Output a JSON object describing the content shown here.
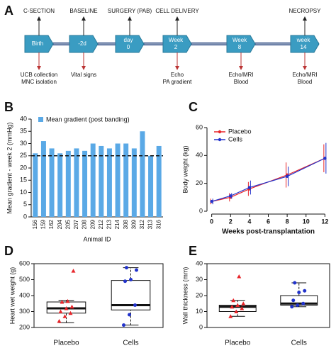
{
  "timeline": {
    "panel": "A",
    "events": [
      {
        "top": "C-SECTION",
        "box": [
          "Birth"
        ],
        "bottom": [
          "UCB collection",
          "MNC isolation"
        ]
      },
      {
        "top": "BASELINE",
        "box": [
          "-2d"
        ],
        "bottom": [
          "Vital signs"
        ]
      },
      {
        "top": "SURGERY (PAB)",
        "box": [
          "day",
          "0"
        ]
      },
      {
        "top": "CELL DELIVERY",
        "box": [
          "Week",
          "2"
        ],
        "bottom": [
          "Echo",
          "PA gradient"
        ]
      },
      {
        "box": [
          "Week",
          "8"
        ],
        "bottom": [
          "Echo/MRI",
          "Blood"
        ]
      },
      {
        "top": "NECROPSY",
        "box": [
          "week",
          "14"
        ],
        "bottom": [
          "Echo/MRI",
          "Blood"
        ]
      }
    ]
  },
  "chart_data": [
    {
      "type": "bar",
      "panel": "B",
      "y_label": "Mean gradient - week 2 (mmHg)",
      "x_label": "Animal ID",
      "legend": "Mean gradient (post banding)",
      "color": "#5aa9e6",
      "categories": [
        "156",
        "159",
        "162",
        "204",
        "205",
        "207",
        "208",
        "209",
        "212",
        "213",
        "214",
        "308",
        "309",
        "312",
        "313",
        "316"
      ],
      "values": [
        26,
        31,
        28,
        26,
        27,
        28,
        27,
        30,
        29,
        28,
        30,
        30,
        28,
        35,
        25,
        29
      ],
      "reference_line": 25,
      "ylim": [
        0,
        40
      ],
      "yticks": [
        0,
        5,
        10,
        15,
        20,
        25,
        30,
        35,
        40
      ]
    },
    {
      "type": "line",
      "panel": "C",
      "y_label": "Body weight (kg)",
      "x_label": "Weeks post-transplantation",
      "x": [
        0,
        2,
        4,
        8,
        12
      ],
      "xlim": [
        -0.5,
        12.5
      ],
      "xticks": [
        0,
        2,
        4,
        6,
        8,
        10,
        12
      ],
      "ylim": [
        0,
        60
      ],
      "yticks": [
        0,
        20,
        40,
        60
      ],
      "series": [
        {
          "name": "Placebo",
          "color": "#e8262b",
          "values": [
            7,
            10,
            16,
            26,
            38
          ],
          "errors": [
            2,
            3,
            5,
            9,
            10
          ]
        },
        {
          "name": "Cells",
          "color": "#2233cc",
          "values": [
            7,
            11,
            17,
            25,
            38
          ],
          "errors": [
            2,
            2,
            5,
            7,
            11
          ]
        }
      ]
    },
    {
      "type": "box",
      "panel": "D",
      "y_label": "Heart wet weight (g)",
      "categories": [
        "Placebo",
        "Cells"
      ],
      "ylim": [
        200,
        600
      ],
      "yticks": [
        200,
        300,
        400,
        500,
        600
      ],
      "boxes": [
        {
          "color": "#e8262b",
          "marker": "triangle",
          "min": 230,
          "q1": 290,
          "median": 320,
          "q3": 360,
          "max": 370,
          "points": [
            240,
            270,
            290,
            300,
            320,
            330,
            360,
            365,
            555
          ]
        },
        {
          "color": "#2233cc",
          "marker": "circle",
          "min": 215,
          "q1": 310,
          "median": 340,
          "q3": 495,
          "max": 575,
          "points": [
            215,
            280,
            340,
            490,
            500,
            560,
            575
          ]
        }
      ]
    },
    {
      "type": "box",
      "panel": "E",
      "y_label": "Wall thickness (mm)",
      "categories": [
        "Placebo",
        "Cells"
      ],
      "ylim": [
        0,
        40
      ],
      "yticks": [
        0,
        10,
        20,
        30,
        40
      ],
      "boxes": [
        {
          "color": "#e8262b",
          "marker": "triangle",
          "min": 7,
          "q1": 10,
          "median": 13,
          "q3": 14,
          "max": 17,
          "points": [
            7,
            10,
            12,
            13,
            14,
            15,
            17,
            32
          ]
        },
        {
          "color": "#2233cc",
          "marker": "circle",
          "min": 13,
          "q1": 14,
          "median": 15,
          "q3": 20,
          "max": 28,
          "points": [
            13,
            14,
            15,
            17,
            22,
            23,
            28
          ]
        }
      ]
    }
  ]
}
